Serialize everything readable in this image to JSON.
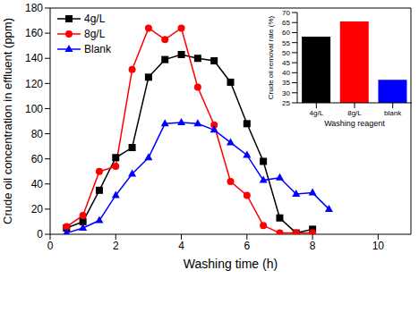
{
  "chart_data": [
    {
      "type": "line",
      "x_label": "Washing time (h)",
      "y_label": "Crude oil concentration in effluent (ppm)",
      "xlim": [
        0,
        11
      ],
      "xticks": [
        0,
        2,
        4,
        6,
        8,
        10
      ],
      "ylim": [
        0,
        180
      ],
      "yticks": [
        0,
        20,
        40,
        60,
        80,
        100,
        120,
        140,
        160,
        180
      ],
      "grid": false,
      "legend": "upper left",
      "series": [
        {
          "name": "4g/L",
          "color": "#000000",
          "marker": "square",
          "x": [
            0.5,
            1,
            1.5,
            2,
            2.5,
            3,
            3.5,
            4,
            4.5,
            5,
            5.5,
            6,
            6.5,
            7,
            7.5,
            8
          ],
          "values": [
            5,
            10,
            35,
            61,
            69,
            125,
            139,
            143,
            140,
            138,
            121,
            88,
            58,
            13,
            1,
            4
          ]
        },
        {
          "name": "8g/L",
          "color": "#ff0000",
          "marker": "circle",
          "x": [
            0.5,
            1,
            1.5,
            2,
            2.5,
            3,
            3.5,
            4,
            4.5,
            5,
            5.5,
            6,
            6.5,
            7,
            7.5,
            8
          ],
          "values": [
            6,
            15,
            50,
            54,
            131,
            164,
            155,
            164,
            117,
            87,
            42,
            31,
            7,
            1,
            1,
            1
          ]
        },
        {
          "name": "Blank",
          "color": "#0000ff",
          "marker": "triangle",
          "x": [
            0.5,
            1,
            1.5,
            2,
            2.5,
            3,
            3.5,
            4,
            4.5,
            5,
            5.5,
            6,
            6.5,
            7,
            7.5,
            8,
            8.5
          ],
          "values": [
            1,
            5,
            11,
            31,
            48,
            61,
            88,
            89,
            88,
            83,
            73,
            63,
            43,
            45,
            32,
            33,
            20
          ]
        }
      ]
    },
    {
      "type": "bar",
      "x_label": "Washing reagent",
      "y_label": "Crude oil removal rate (%)",
      "categories": [
        "4g/L",
        "8g/L",
        "blank"
      ],
      "values": [
        58,
        65.5,
        36.5
      ],
      "colors": [
        "#000000",
        "#ff0000",
        "#0000ff"
      ],
      "ylim": [
        25,
        70
      ],
      "yticks": [
        25,
        30,
        35,
        40,
        45,
        50,
        55,
        60,
        65,
        70
      ],
      "grid": false
    }
  ]
}
